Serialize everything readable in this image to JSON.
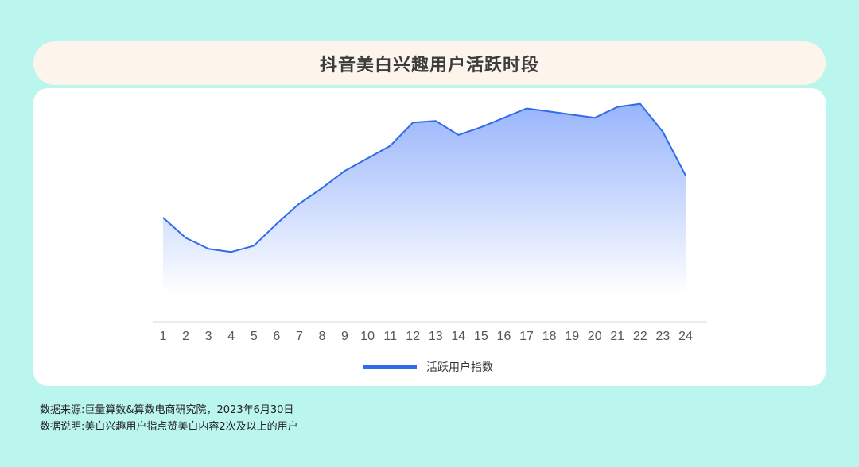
{
  "title": "抖音美白兴趣用户活跃时段",
  "chart_data": {
    "type": "area",
    "title": "抖音美白兴趣用户活跃时段",
    "x": [
      "1",
      "2",
      "3",
      "4",
      "5",
      "6",
      "7",
      "8",
      "9",
      "10",
      "11",
      "12",
      "13",
      "14",
      "15",
      "16",
      "17",
      "18",
      "19",
      "20",
      "21",
      "22",
      "23",
      "24"
    ],
    "series": [
      {
        "name": "活跃用户指数",
        "values": [
          37,
          24,
          17,
          15,
          19,
          33,
          46,
          56,
          67,
          75,
          83,
          98,
          99,
          90,
          95,
          101,
          107,
          105,
          103,
          101,
          108,
          110,
          92,
          64
        ]
      }
    ],
    "xlabel": "",
    "ylabel": "",
    "ylim": [
      -30,
      120
    ],
    "grid": false,
    "legend_position": "bottom",
    "colors": {
      "line": "#2f6bea",
      "fill_top": "#93b1fb",
      "fill_bottom": "#ffffff"
    }
  },
  "footnotes": {
    "source": "数据来源:巨量算数&算数电商研究院，2023年6月30日",
    "note": "数据说明:美白兴趣用户指点赞美白内容2次及以上的用户"
  }
}
